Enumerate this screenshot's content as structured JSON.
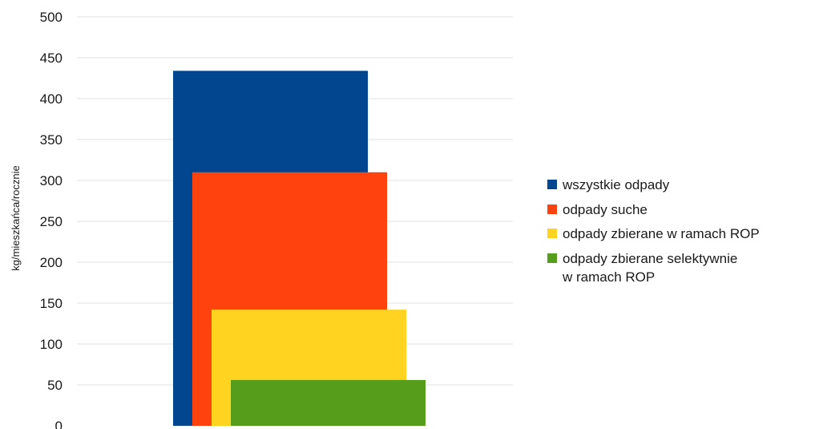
{
  "chart_data": {
    "type": "bar",
    "ylabel": "kg/mieszkańca/rocznie",
    "ylim": [
      0,
      500
    ],
    "yticks": [
      0,
      50,
      100,
      150,
      200,
      250,
      300,
      350,
      400,
      450,
      500
    ],
    "grid": true,
    "legend_position": "right",
    "series": [
      {
        "name": "wszystkie odpady",
        "value": 434,
        "color": "#024690"
      },
      {
        "name": "odpady suche",
        "value": 310,
        "color": "#ff420e"
      },
      {
        "name": "odpady zbierane w ramach ROP",
        "value": 142,
        "color": "#ffd320"
      },
      {
        "name": "odpady zbierane selektywnie w ramach ROP",
        "value": 56,
        "color": "#579d1c"
      }
    ]
  },
  "legend": {
    "items": [
      {
        "label": "wszystkie odpady"
      },
      {
        "label": "odpady suche"
      },
      {
        "label": "odpady zbierane w ramach ROP"
      },
      {
        "label_line1": "odpady zbierane selektywnie",
        "label_line2": "w ramach ROP"
      }
    ]
  }
}
